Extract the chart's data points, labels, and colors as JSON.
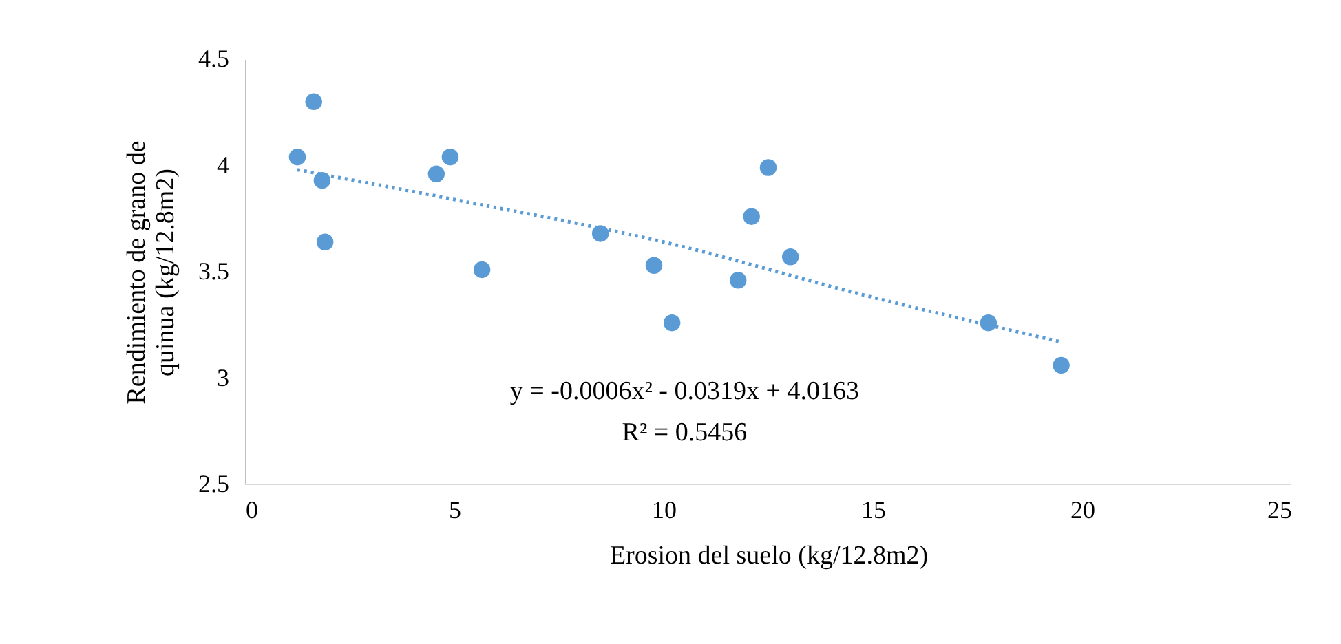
{
  "chart_data": {
    "type": "scatter",
    "xlabel": "Erosion del suelo (kg/12.8m2)",
    "ylabel": "Rendimiento de grano de quinua (kg/12.8m2)",
    "xlim": [
      0,
      25
    ],
    "xticks": [
      0,
      5,
      10,
      15,
      20,
      25
    ],
    "ylim": [
      2.5,
      4.5
    ],
    "yticks": [
      2.5,
      3,
      3.5,
      4,
      4.5
    ],
    "grid": false,
    "series": [
      {
        "marker": "circle",
        "color": "#5b9bd5",
        "x": [
          1.25,
          1.64,
          1.84,
          1.91,
          4.57,
          4.9,
          5.66,
          8.49,
          9.77,
          10.2,
          11.78,
          12.1,
          12.5,
          13.03,
          17.76,
          19.5
        ],
        "values": [
          4.04,
          4.3,
          3.93,
          3.64,
          3.96,
          4.04,
          3.51,
          3.68,
          3.53,
          3.26,
          3.46,
          3.76,
          3.99,
          3.57,
          3.26,
          3.06
        ]
      },
      {
        "type": "line",
        "marker": "none",
        "color": "#5b9bd5",
        "line_style": "dotted",
        "x": [
          1.25,
          5,
          10,
          15,
          19.5
        ],
        "values": [
          3.98,
          3.84,
          3.64,
          3.38,
          3.17
        ]
      }
    ],
    "annotations": [
      "y = -0.0006x² - 0.0319x + 4.0163",
      "R² = 0.5456"
    ]
  }
}
